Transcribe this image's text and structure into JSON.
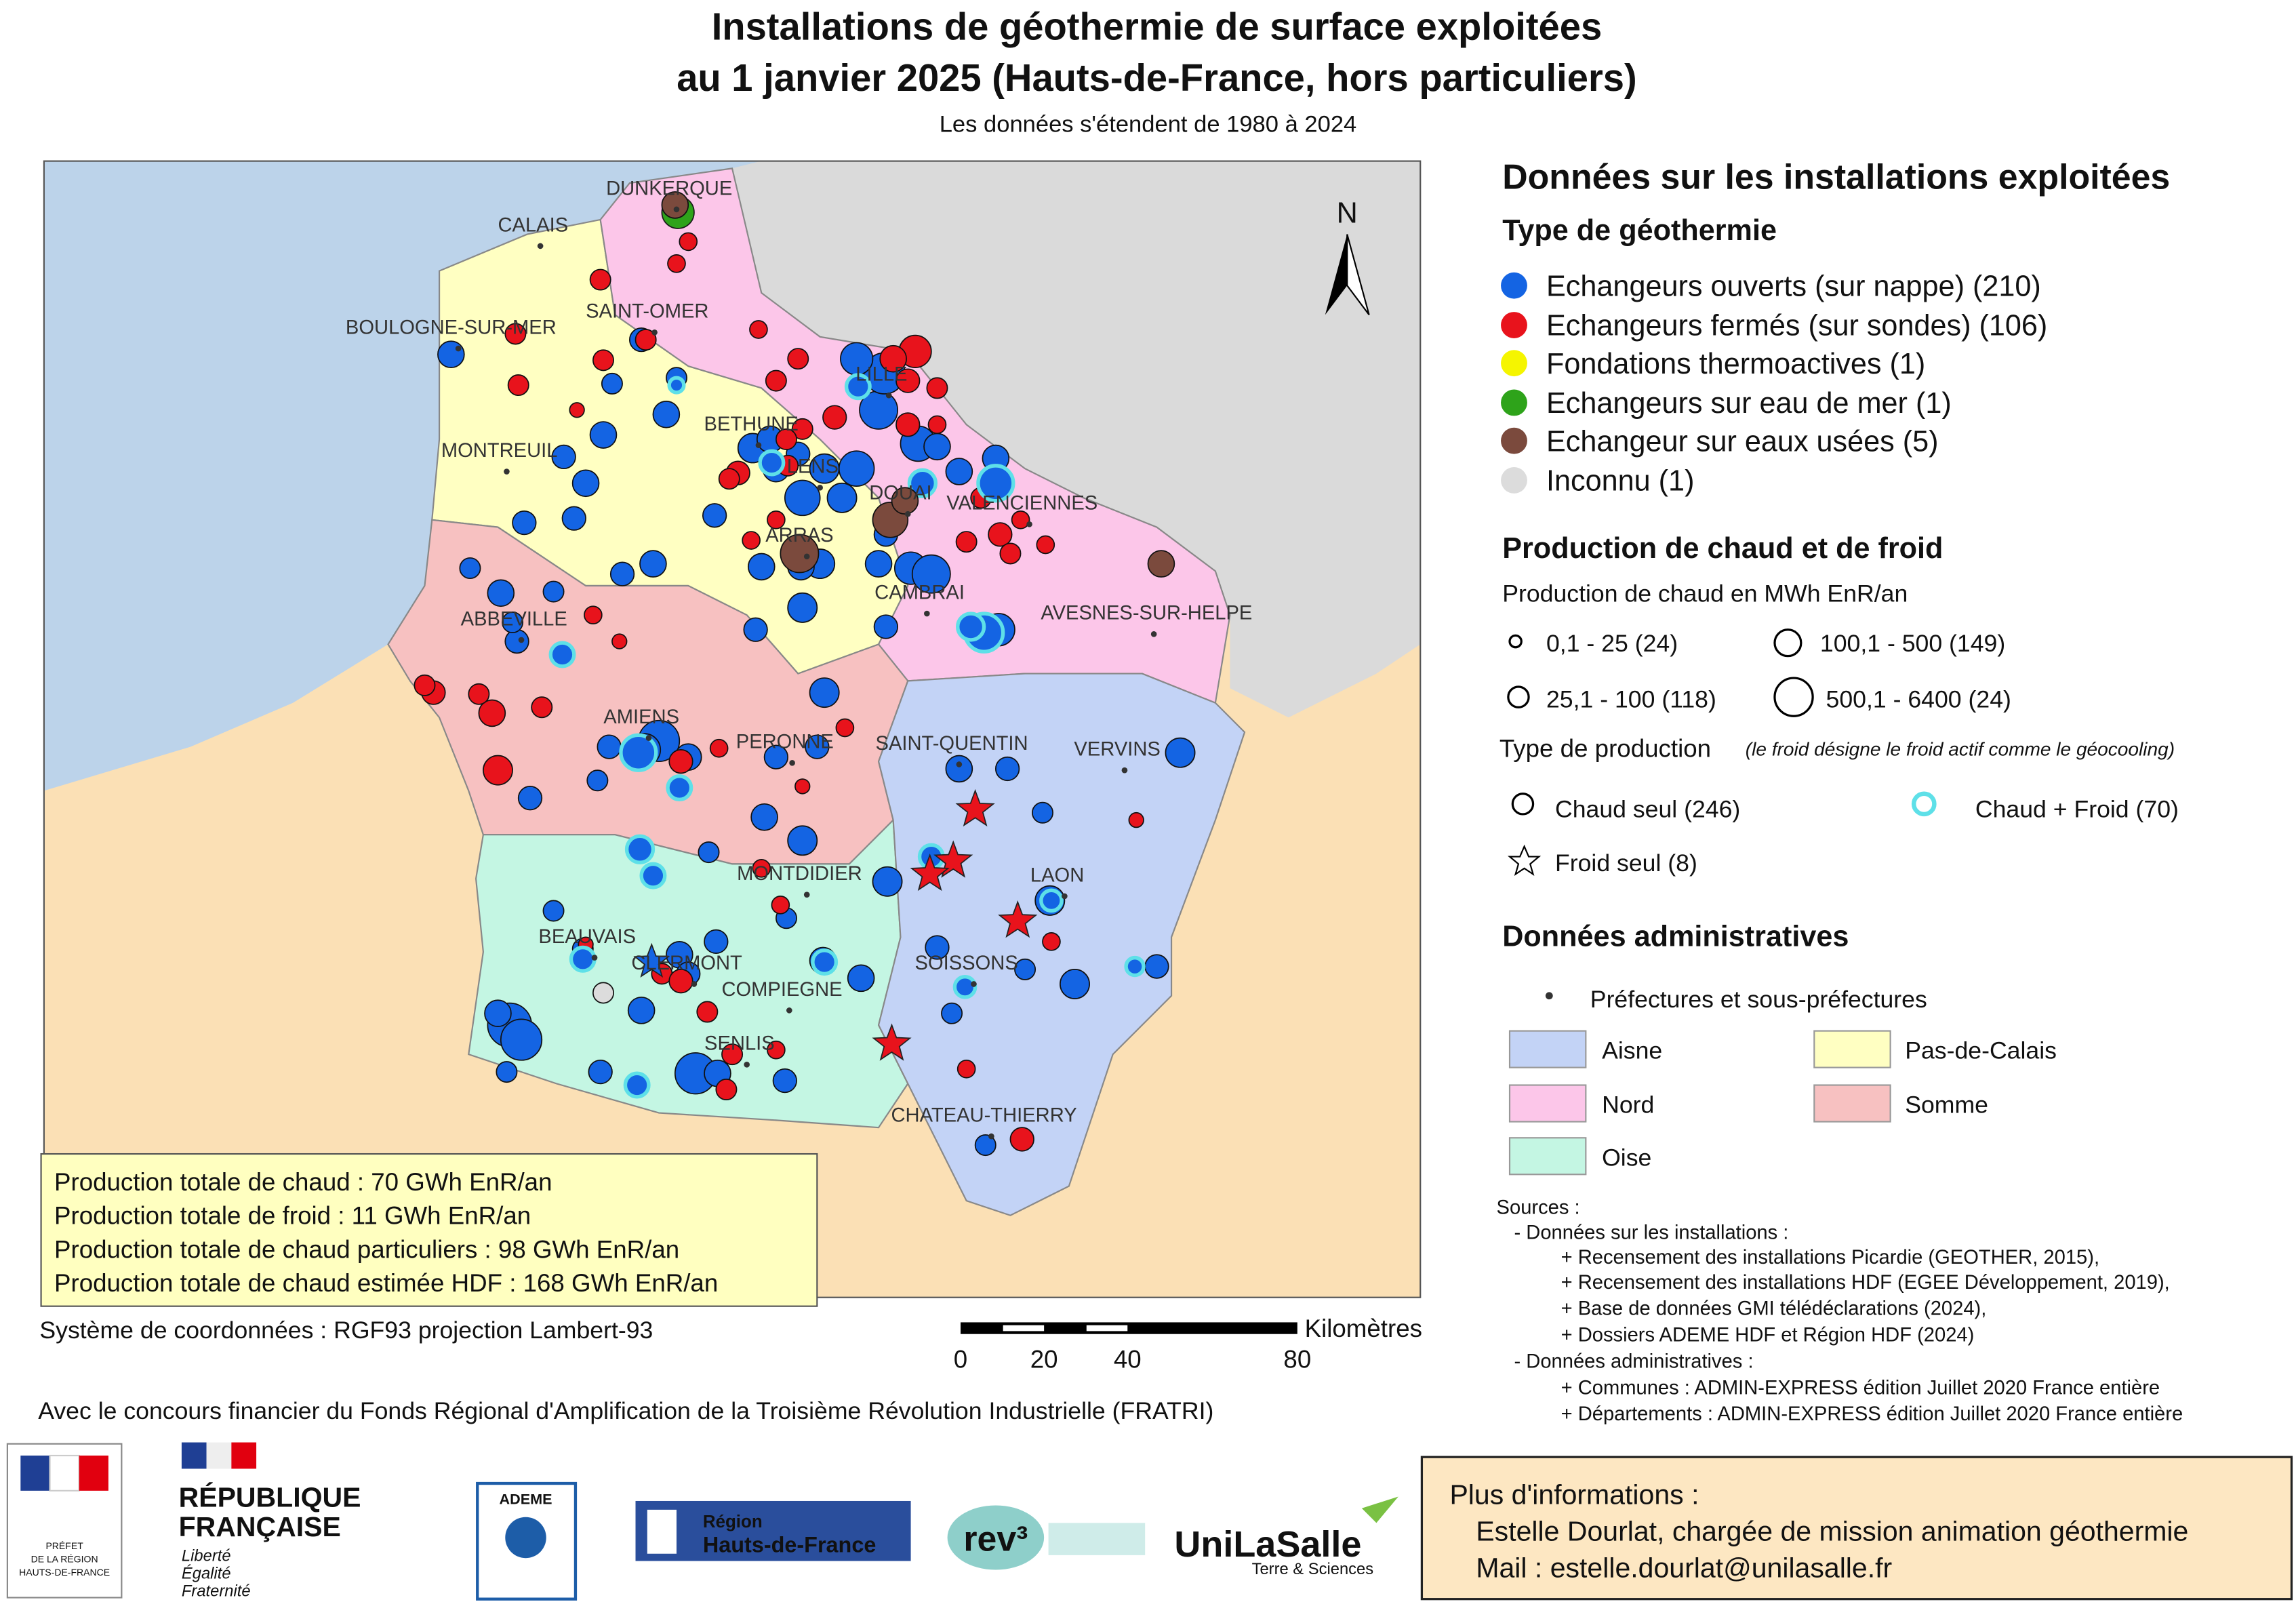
{
  "title": [
    "Installations de géothermie de surface exploitées",
    "au 1 janvier 2025 (Hauts-de-France, hors particuliers)"
  ],
  "subtitle": "Les données s'étendent de 1980 à 2024",
  "map": {
    "north": "N",
    "cities": [
      "DUNKERQUE",
      "CALAIS",
      "SAINT-OMER",
      "BOULOGNE-SUR-MER",
      "MONTREUIL",
      "BETHUNE",
      "LILLE",
      "LENS",
      "DOUAI",
      "VALENCIENNES",
      "ARRAS",
      "CAMBRAI",
      "AVESNES-SUR-HELPE",
      "ABBEVILLE",
      "AMIENS",
      "PERONNE",
      "SAINT-QUENTIN",
      "VERVINS",
      "MONTDIDIER",
      "LAON",
      "BEAUVAIS",
      "CLERMONT",
      "COMPIEGNE",
      "SOISSONS",
      "SENLIS",
      "CHATEAU-THIERRY"
    ],
    "summary": [
      "Production totale de chaud : 70 GWh EnR/an",
      "Production totale de froid : 11 GWh EnR/an",
      "Production totale de chaud particuliers : 98 GWh EnR/an",
      "Production totale de chaud estimée HDF : 168 GWh EnR/an"
    ],
    "coordinates": "Système de coordonnées : RGF93 projection Lambert-93",
    "scale": {
      "unit": "Kilomètres",
      "labels": [
        "0",
        "20",
        "40",
        "80"
      ]
    }
  },
  "legend": {
    "title": "Données sur les installations exploitées",
    "type_title": "Type de géothermie",
    "types": [
      "Echangeurs ouverts (sur nappe) (210)",
      "Echangeurs fermés (sur sondes) (106)",
      "Fondations thermoactives (1)",
      "Echangeurs sur eau de mer (1)",
      "Echangeur sur eaux usées (5)",
      "Inconnu (1)"
    ],
    "production_title": "Production de chaud et de froid",
    "heat_title": "Production de chaud en MWh EnR/an",
    "heat_classes": [
      "0,1 - 25 (24)",
      "25,1 - 100 (118)",
      "100,1 - 500 (149)",
      "500,1 - 6400 (24)"
    ],
    "prod_type_title": "Type de production",
    "prod_type_note": "(le froid désigne le froid actif comme le géocooling)",
    "prod_types": [
      "Chaud seul (246)",
      "Chaud + Froid (70)",
      "Froid seul (8)"
    ],
    "admin_title": "Données administratives",
    "prefectures": "Préfectures et sous-préfectures",
    "departments": [
      "Aisne",
      "Pas-de-Calais",
      "Nord",
      "Somme",
      "Oise"
    ]
  },
  "sources": [
    "Sources :",
    "- Données sur les installations :",
    "+ Recensement des installations Picardie (GEOTHER, 2015),",
    "+ Recensement des installations HDF (EGEE Développement, 2019),",
    "+ Base de données GMI télédéclarations (2024),",
    "+ Dossiers ADEME HDF et Région HDF (2024)",
    "- Données administratives :",
    "+ Communes : ADMIN-EXPRESS édition Juillet 2020 France entière",
    "+ Départements : ADMIN-EXPRESS édition Juillet 2020 France entière"
  ],
  "funding": "Avec le concours financier du Fonds Régional d'Amplification de la Troisième Révolution Industrielle (FRATRI)",
  "logos": {
    "prefet": [
      "PRÉFET",
      "DE LA RÉGION",
      "HAUTS-DE-FRANCE"
    ],
    "republique": [
      "RÉPUBLIQUE",
      "FRANÇAISE"
    ],
    "devise": [
      "Liberté",
      "Égalité",
      "Fraternité"
    ],
    "ademe": "ADEME",
    "region": [
      "Région",
      "Hauts-de-France"
    ],
    "rev3": "rev³",
    "unilasalle": "UniLaSalle",
    "unilasalle_sub": "Terre & Sciences"
  },
  "contact": [
    "Plus d'informations :",
    "Estelle Dourlat, chargée de mission animation géothermie",
    "Mail : estelle.dourlat@unilasalle.fr"
  ]
}
